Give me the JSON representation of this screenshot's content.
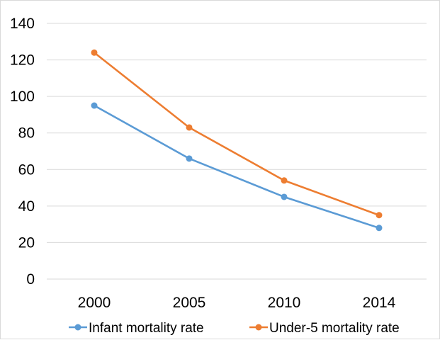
{
  "chart_data": {
    "type": "line",
    "title": "",
    "xlabel": "",
    "ylabel": "",
    "categories": [
      "2000",
      "2005",
      "2010",
      "2014"
    ],
    "ylim": [
      0,
      140
    ],
    "yticks": [
      0,
      20,
      40,
      60,
      80,
      100,
      120,
      140
    ],
    "grid": true,
    "legend_position": "bottom",
    "series": [
      {
        "name": "Infant mortality rate",
        "color": "#5B9BD5",
        "values": [
          95,
          66,
          45,
          28
        ]
      },
      {
        "name": "Under-5 mortality rate",
        "color": "#ED7D31",
        "values": [
          124,
          83,
          54,
          35
        ]
      }
    ]
  }
}
